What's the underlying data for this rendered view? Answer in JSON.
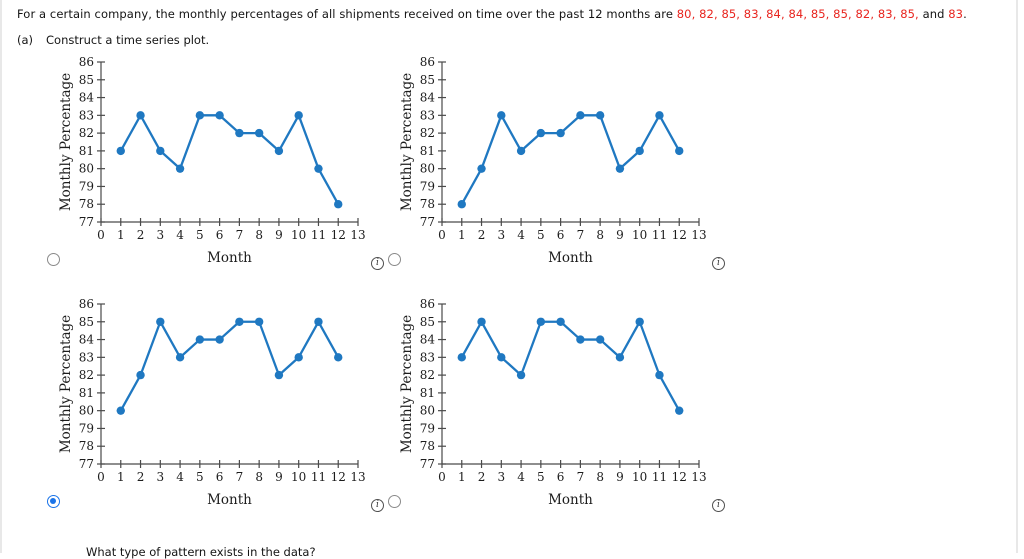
{
  "colors": {
    "chart_blue": "#1f78c1",
    "red_text": "#e8251f",
    "radio_selected_blue": "#1a73e8",
    "axis_color": "#4a4a4a",
    "chart_text": "#1c1c1c"
  },
  "icons": {
    "info_glyph": "i"
  },
  "header": {
    "prefix": "For a certain company, the monthly percentages of all shipments received on time over the past 12 months are ",
    "values_red": "80, 82, 85, 83, 84, 84, 85, 85, 82, 83, 85,",
    "conjunction": " and ",
    "last_value_red": "83",
    "suffix": "."
  },
  "part_a": {
    "label": "(a)",
    "text": "Construct a time series plot."
  },
  "footer_question": "What type of pattern exists in the data?",
  "chart_data": [
    {
      "type": "line",
      "option": 1,
      "selected": false,
      "x": [
        1,
        2,
        3,
        4,
        5,
        6,
        7,
        8,
        9,
        10,
        11,
        12
      ],
      "values": [
        81,
        83,
        81,
        80,
        83,
        83,
        82,
        82,
        81,
        83,
        80,
        78
      ],
      "xlabel": "Month",
      "ylabel": "Monthly Percentage",
      "xlim": [
        0,
        13
      ],
      "ylim": [
        77,
        86
      ],
      "x_tick_step": 1,
      "y_tick_step": 1,
      "grid": false,
      "legend": false
    },
    {
      "type": "line",
      "option": 2,
      "selected": false,
      "x": [
        1,
        2,
        3,
        4,
        5,
        6,
        7,
        8,
        9,
        10,
        11,
        12
      ],
      "values": [
        78,
        80,
        83,
        81,
        82,
        82,
        83,
        83,
        80,
        81,
        83,
        81
      ],
      "xlabel": "Month",
      "ylabel": "Monthly Percentage",
      "xlim": [
        0,
        13
      ],
      "ylim": [
        77,
        86
      ],
      "x_tick_step": 1,
      "y_tick_step": 1,
      "grid": false,
      "legend": false
    },
    {
      "type": "line",
      "option": 3,
      "selected": true,
      "x": [
        1,
        2,
        3,
        4,
        5,
        6,
        7,
        8,
        9,
        10,
        11,
        12
      ],
      "values": [
        80,
        82,
        85,
        83,
        84,
        84,
        85,
        85,
        82,
        83,
        85,
        83
      ],
      "xlabel": "Month",
      "ylabel": "Monthly Percentage",
      "xlim": [
        0,
        13
      ],
      "ylim": [
        77,
        86
      ],
      "x_tick_step": 1,
      "y_tick_step": 1,
      "grid": false,
      "legend": false
    },
    {
      "type": "line",
      "option": 4,
      "selected": false,
      "x": [
        1,
        2,
        3,
        4,
        5,
        6,
        7,
        8,
        9,
        10,
        11,
        12
      ],
      "values": [
        83,
        85,
        83,
        82,
        85,
        85,
        84,
        84,
        83,
        85,
        82,
        80
      ],
      "xlabel": "Month",
      "ylabel": "Monthly Percentage",
      "xlim": [
        0,
        13
      ],
      "ylim": [
        77,
        86
      ],
      "x_tick_step": 1,
      "y_tick_step": 1,
      "grid": false,
      "legend": false
    }
  ]
}
